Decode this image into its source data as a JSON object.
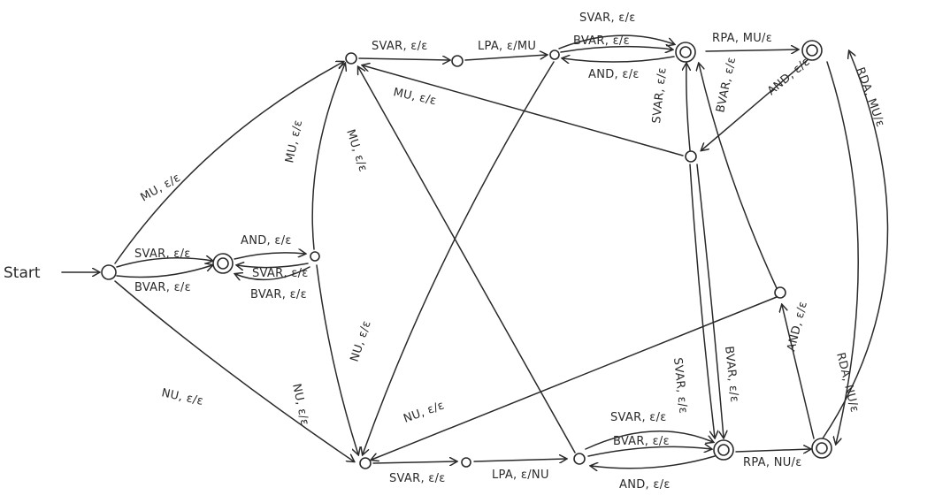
{
  "diagram": {
    "start_label": "Start",
    "states": [
      {
        "id": "s0"
      },
      {
        "id": "s1",
        "accepting": true
      },
      {
        "id": "s2"
      },
      {
        "id": "m0"
      },
      {
        "id": "m1"
      },
      {
        "id": "m2"
      },
      {
        "id": "m3",
        "accepting": true
      },
      {
        "id": "m4",
        "accepting": true
      },
      {
        "id": "n0"
      },
      {
        "id": "n1"
      },
      {
        "id": "n2"
      },
      {
        "id": "n3",
        "accepting": true
      },
      {
        "id": "n4",
        "accepting": true
      },
      {
        "id": "r1"
      },
      {
        "id": "r2"
      }
    ],
    "edges": [
      {
        "from": "start",
        "to": "s0",
        "label": ""
      },
      {
        "from": "s0",
        "to": "m0",
        "label": "MU, ε/ε"
      },
      {
        "from": "s0",
        "to": "s1",
        "label": "SVAR, ε/ε"
      },
      {
        "from": "s0",
        "to": "s1",
        "label": "BVAR, ε/ε"
      },
      {
        "from": "s0",
        "to": "n0",
        "label": "NU, ε/ε"
      },
      {
        "from": "s1",
        "to": "s2",
        "label": "AND, ε/ε"
      },
      {
        "from": "s2",
        "to": "s1",
        "label": "SVAR, ε/ε"
      },
      {
        "from": "s2",
        "to": "s1",
        "label": "BVAR, ε/ε"
      },
      {
        "from": "s2",
        "to": "m0",
        "label": "MU, ε/ε"
      },
      {
        "from": "s2",
        "to": "n0",
        "label": "NU, ε/ε"
      },
      {
        "from": "m0",
        "to": "m1",
        "label": "SVAR, ε/ε"
      },
      {
        "from": "m1",
        "to": "m2",
        "label": "LPA, ε/MU"
      },
      {
        "from": "m2",
        "to": "m3",
        "label": "SVAR, ε/ε"
      },
      {
        "from": "m2",
        "to": "m3",
        "label": "BVAR, ε/ε"
      },
      {
        "from": "m3",
        "to": "m2",
        "label": "AND, ε/ε"
      },
      {
        "from": "m3",
        "to": "m4",
        "label": "RPA, MU/ε"
      },
      {
        "from": "m4",
        "to": "r1",
        "label": "AND, ε/ε"
      },
      {
        "from": "r1",
        "to": "m0",
        "label": "MU, ε/ε"
      },
      {
        "from": "r1",
        "to": "m3",
        "label": "SVAR, ε/ε"
      },
      {
        "from": "r1",
        "to": "m3",
        "label": "BVAR, ε/ε"
      },
      {
        "from": "m4",
        "to": "n4",
        "label": "RDA, MU/ε"
      },
      {
        "from": "m2",
        "to": "n0",
        "label": "NU, ε/ε"
      },
      {
        "from": "n2",
        "to": "m0",
        "label": "MU, ε/ε"
      },
      {
        "from": "n0",
        "to": "n1",
        "label": "SVAR, ε/ε"
      },
      {
        "from": "n1",
        "to": "n2",
        "label": "LPA, ε/NU"
      },
      {
        "from": "n2",
        "to": "n3",
        "label": "SVAR, ε/ε"
      },
      {
        "from": "n2",
        "to": "n3",
        "label": "BVAR, ε/ε"
      },
      {
        "from": "n3",
        "to": "n2",
        "label": "AND, ε/ε"
      },
      {
        "from": "n3",
        "to": "n4",
        "label": "RPA, NU/ε"
      },
      {
        "from": "n4",
        "to": "r2",
        "label": "AND, ε/ε"
      },
      {
        "from": "r2",
        "to": "n0",
        "label": "NU, ε/ε"
      },
      {
        "from": "r1",
        "to": "n3",
        "label": "SVAR, ε/ε"
      },
      {
        "from": "r1",
        "to": "n3",
        "label": "BVAR, ε/ε"
      },
      {
        "from": "n4",
        "to": "m4",
        "label": "RDA, NU/ε"
      }
    ]
  }
}
